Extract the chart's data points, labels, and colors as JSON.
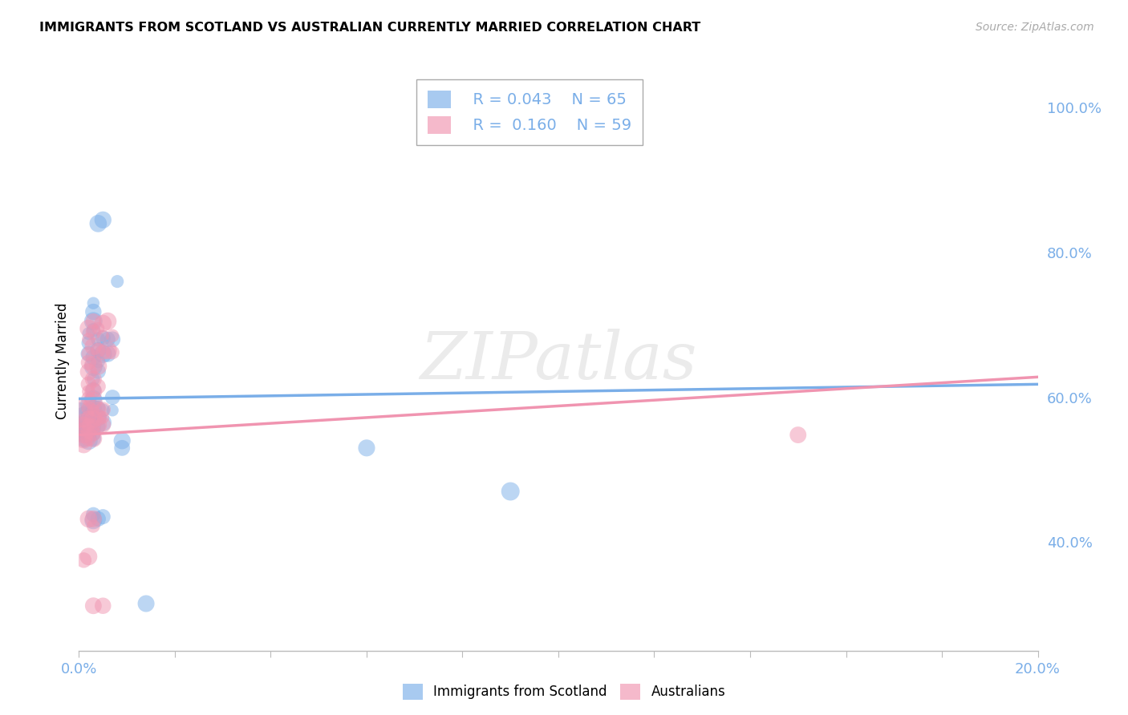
{
  "title": "IMMIGRANTS FROM SCOTLAND VS AUSTRALIAN CURRENTLY MARRIED CORRELATION CHART",
  "source": "Source: ZipAtlas.com",
  "ylabel": "Currently Married",
  "legend_1_r": "0.043",
  "legend_1_n": "65",
  "legend_2_r": "0.160",
  "legend_2_n": "59",
  "color_blue": "#7aaee8",
  "color_pink": "#f094b0",
  "watermark": "ZIPatlas",
  "blue_scatter": [
    [
      0.0,
      0.57
    ],
    [
      0.001,
      0.575
    ],
    [
      0.001,
      0.565
    ],
    [
      0.001,
      0.56
    ],
    [
      0.001,
      0.555
    ],
    [
      0.001,
      0.548
    ],
    [
      0.001,
      0.542
    ],
    [
      0.002,
      0.688
    ],
    [
      0.002,
      0.675
    ],
    [
      0.002,
      0.66
    ],
    [
      0.002,
      0.59
    ],
    [
      0.002,
      0.58
    ],
    [
      0.002,
      0.575
    ],
    [
      0.002,
      0.57
    ],
    [
      0.002,
      0.563
    ],
    [
      0.002,
      0.558
    ],
    [
      0.002,
      0.552
    ],
    [
      0.002,
      0.546
    ],
    [
      0.002,
      0.54
    ],
    [
      0.003,
      0.73
    ],
    [
      0.003,
      0.718
    ],
    [
      0.003,
      0.705
    ],
    [
      0.003,
      0.693
    ],
    [
      0.003,
      0.655
    ],
    [
      0.003,
      0.642
    ],
    [
      0.003,
      0.625
    ],
    [
      0.003,
      0.61
    ],
    [
      0.003,
      0.598
    ],
    [
      0.003,
      0.585
    ],
    [
      0.003,
      0.572
    ],
    [
      0.003,
      0.565
    ],
    [
      0.003,
      0.558
    ],
    [
      0.003,
      0.55
    ],
    [
      0.003,
      0.543
    ],
    [
      0.003,
      0.438
    ],
    [
      0.003,
      0.43
    ],
    [
      0.004,
      0.84
    ],
    [
      0.004,
      0.68
    ],
    [
      0.004,
      0.665
    ],
    [
      0.004,
      0.65
    ],
    [
      0.004,
      0.636
    ],
    [
      0.004,
      0.585
    ],
    [
      0.004,
      0.572
    ],
    [
      0.004,
      0.56
    ],
    [
      0.004,
      0.432
    ],
    [
      0.005,
      0.845
    ],
    [
      0.005,
      0.682
    ],
    [
      0.005,
      0.66
    ],
    [
      0.005,
      0.582
    ],
    [
      0.005,
      0.565
    ],
    [
      0.005,
      0.435
    ],
    [
      0.006,
      0.68
    ],
    [
      0.006,
      0.66
    ],
    [
      0.007,
      0.68
    ],
    [
      0.007,
      0.6
    ],
    [
      0.007,
      0.582
    ],
    [
      0.008,
      0.76
    ],
    [
      0.009,
      0.54
    ],
    [
      0.009,
      0.53
    ],
    [
      0.06,
      0.53
    ],
    [
      0.09,
      0.47
    ],
    [
      0.014,
      0.315
    ]
  ],
  "pink_scatter": [
    [
      0.0,
      0.578
    ],
    [
      0.001,
      0.568
    ],
    [
      0.001,
      0.562
    ],
    [
      0.001,
      0.556
    ],
    [
      0.001,
      0.549
    ],
    [
      0.001,
      0.542
    ],
    [
      0.001,
      0.535
    ],
    [
      0.001,
      0.375
    ],
    [
      0.002,
      0.695
    ],
    [
      0.002,
      0.68
    ],
    [
      0.002,
      0.66
    ],
    [
      0.002,
      0.648
    ],
    [
      0.002,
      0.635
    ],
    [
      0.002,
      0.618
    ],
    [
      0.002,
      0.608
    ],
    [
      0.002,
      0.598
    ],
    [
      0.002,
      0.585
    ],
    [
      0.002,
      0.572
    ],
    [
      0.002,
      0.562
    ],
    [
      0.002,
      0.553
    ],
    [
      0.002,
      0.543
    ],
    [
      0.002,
      0.432
    ],
    [
      0.002,
      0.38
    ],
    [
      0.003,
      0.705
    ],
    [
      0.003,
      0.69
    ],
    [
      0.003,
      0.67
    ],
    [
      0.003,
      0.645
    ],
    [
      0.003,
      0.625
    ],
    [
      0.003,
      0.608
    ],
    [
      0.003,
      0.595
    ],
    [
      0.003,
      0.582
    ],
    [
      0.003,
      0.57
    ],
    [
      0.003,
      0.56
    ],
    [
      0.003,
      0.55
    ],
    [
      0.003,
      0.543
    ],
    [
      0.003,
      0.432
    ],
    [
      0.003,
      0.422
    ],
    [
      0.003,
      0.312
    ],
    [
      0.004,
      0.695
    ],
    [
      0.004,
      0.665
    ],
    [
      0.004,
      0.643
    ],
    [
      0.004,
      0.615
    ],
    [
      0.004,
      0.583
    ],
    [
      0.004,
      0.572
    ],
    [
      0.004,
      0.562
    ],
    [
      0.005,
      0.702
    ],
    [
      0.005,
      0.685
    ],
    [
      0.005,
      0.662
    ],
    [
      0.005,
      0.583
    ],
    [
      0.005,
      0.572
    ],
    [
      0.005,
      0.562
    ],
    [
      0.005,
      0.312
    ],
    [
      0.006,
      0.705
    ],
    [
      0.006,
      0.665
    ],
    [
      0.007,
      0.685
    ],
    [
      0.007,
      0.662
    ],
    [
      0.15,
      0.548
    ]
  ],
  "blue_line": [
    [
      0.0,
      0.598
    ],
    [
      0.2,
      0.618
    ]
  ],
  "pink_line": [
    [
      0.0,
      0.548
    ],
    [
      0.2,
      0.628
    ]
  ],
  "xlim": [
    0.0,
    0.2
  ],
  "ylim": [
    0.25,
    1.05
  ],
  "ytick_vals": [
    0.4,
    0.6,
    0.8,
    1.0
  ],
  "ytick_labels": [
    "40.0%",
    "60.0%",
    "80.0%",
    "100.0%"
  ],
  "xtick_vals": [
    0.0,
    0.02,
    0.04,
    0.06,
    0.08,
    0.1,
    0.12,
    0.14,
    0.16,
    0.18,
    0.2
  ],
  "xtick_labels": [
    "0.0%",
    "",
    "",
    "",
    "",
    "",
    "",
    "",
    "",
    "",
    "20.0%"
  ]
}
